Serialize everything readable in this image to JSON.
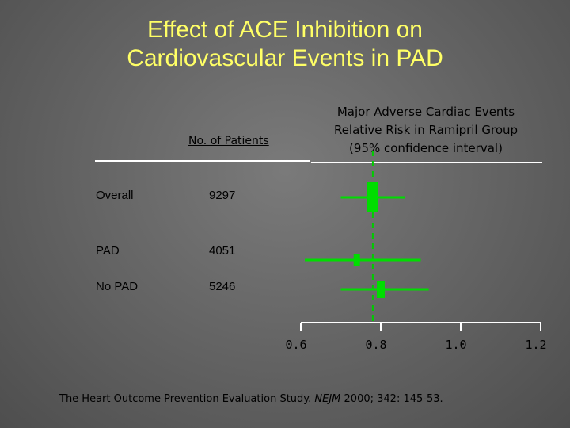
{
  "title": {
    "line1": "Effect of ACE Inhibition on",
    "line2": "Cardiovascular Events in PAD"
  },
  "columns": {
    "n_header": "No. of Patients",
    "effect_header_line1": "Major Adverse Cardiac Events",
    "effect_header_line2": "Relative Risk in Ramipril Group",
    "effect_header_line3": "(95% confidence interval)"
  },
  "rows": [
    {
      "label": "Overall",
      "n": "9297"
    },
    {
      "label": "PAD",
      "n": "4051"
    },
    {
      "label": "No PAD",
      "n": "5246"
    }
  ],
  "citation": {
    "prefix": "The Heart Outcome Prevention Evaluation Study. ",
    "journal": "NEJM",
    "suffix": " 2000; 342: 145-53."
  },
  "colors": {
    "title": "#ffff66",
    "marker": "#00dd00",
    "reference_line": "#00cc00",
    "axis": "#ffffff",
    "text": "#000000"
  },
  "chart_data": {
    "type": "forest",
    "categories": [
      "Overall",
      "PAD",
      "No PAD"
    ],
    "point_estimates": [
      0.78,
      0.74,
      0.8
    ],
    "ci_lower": [
      0.7,
      0.61,
      0.7
    ],
    "ci_upper": [
      0.86,
      0.9,
      0.92
    ],
    "reference_line_x": 0.78,
    "xlim": [
      0.6,
      1.2
    ],
    "xticks": [
      "0.6",
      "0.8",
      "1.0",
      "1.2"
    ],
    "grid": false
  }
}
